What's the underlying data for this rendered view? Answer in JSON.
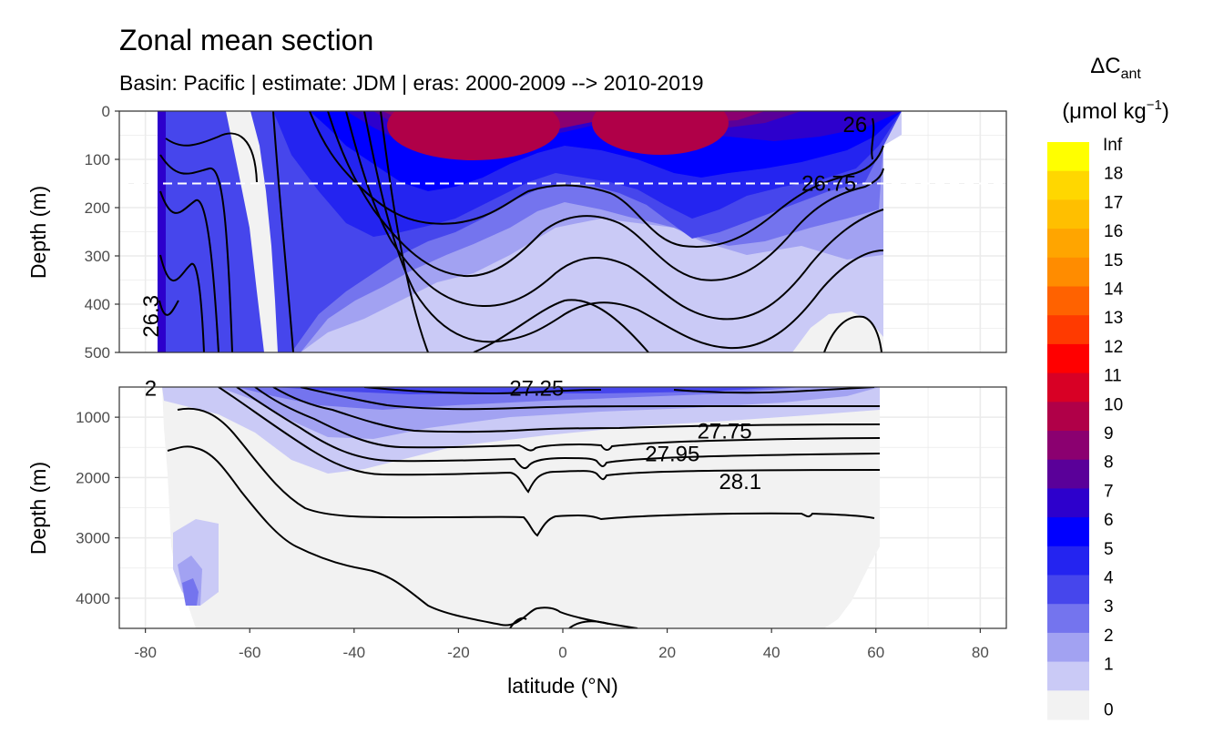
{
  "chart_data": {
    "type": "heatmap",
    "title": "Zonal mean section",
    "subtitle": "Basin: Pacific | estimate: JDM  | eras: 2000-2009 --> 2010-2019",
    "xlabel": "latitude (°N)",
    "x_ticks": [
      "-80",
      "-60",
      "-40",
      "-20",
      "0",
      "20",
      "40",
      "60",
      "80"
    ],
    "x_tick_values": [
      -80,
      -60,
      -40,
      -20,
      0,
      20,
      40,
      60,
      80
    ],
    "xlim": [
      -85,
      85
    ],
    "panels": [
      {
        "name": "upper",
        "ylabel": "Depth (m)",
        "ylim": [
          0,
          500
        ],
        "y_ticks": [
          "0",
          "100",
          "200",
          "300",
          "400",
          "500"
        ],
        "y_tick_values": [
          0,
          100,
          200,
          300,
          400,
          500
        ],
        "reference_depth": 150
      },
      {
        "name": "lower",
        "ylabel": "Depth (m)",
        "ylim": [
          500,
          4500
        ],
        "y_ticks": [
          "1000",
          "2000",
          "3000",
          "4000"
        ],
        "y_tick_values": [
          1000,
          2000,
          3000,
          4000
        ]
      }
    ],
    "legend": {
      "title_main": "ΔC",
      "title_sub": "ant",
      "units_prefix": "(μmol kg",
      "units_exp": "−1",
      "units_suffix": ")",
      "labels": [
        "Inf",
        "18",
        "17",
        "16",
        "15",
        "14",
        "13",
        "12",
        "11",
        "10",
        "9",
        "8",
        "7",
        "6",
        "5",
        "4",
        "3",
        "2",
        "1",
        "0"
      ],
      "colors": [
        "#ffff00",
        "#ffd700",
        "#ffbf00",
        "#ffa500",
        "#ff8c00",
        "#ff6200",
        "#ff3a00",
        "#ff0000",
        "#d80025",
        "#b00048",
        "#8b0070",
        "#5a0099",
        "#2d00cc",
        "#0000ff",
        "#2424f0",
        "#4646ec",
        "#7474ee",
        "#a2a2f2",
        "#cacaf6",
        "#f2f2f2"
      ]
    },
    "contour_labels": [
      {
        "text": "26",
        "lat": 56,
        "depth": 28
      },
      {
        "text": "26.75",
        "lat": 51,
        "depth": 150
      },
      {
        "text": "26.3",
        "lat": -77.5,
        "depth": 410
      },
      {
        "text": "27.25",
        "lat": -5,
        "depth": 520
      },
      {
        "text": "27.75",
        "lat": 31,
        "depth": 1230
      },
      {
        "text": "27.95",
        "lat": 21,
        "depth": 1610
      },
      {
        "text": "28.1",
        "lat": 34,
        "depth": 2070
      },
      {
        "text": "2",
        "lat": -79,
        "depth": 520
      }
    ],
    "colors": {
      "panel_bg": "#ffffff",
      "grid": "#ebebeb",
      "frame": "#333333",
      "contour": "#000000",
      "reference_line": "#ffffff"
    }
  }
}
